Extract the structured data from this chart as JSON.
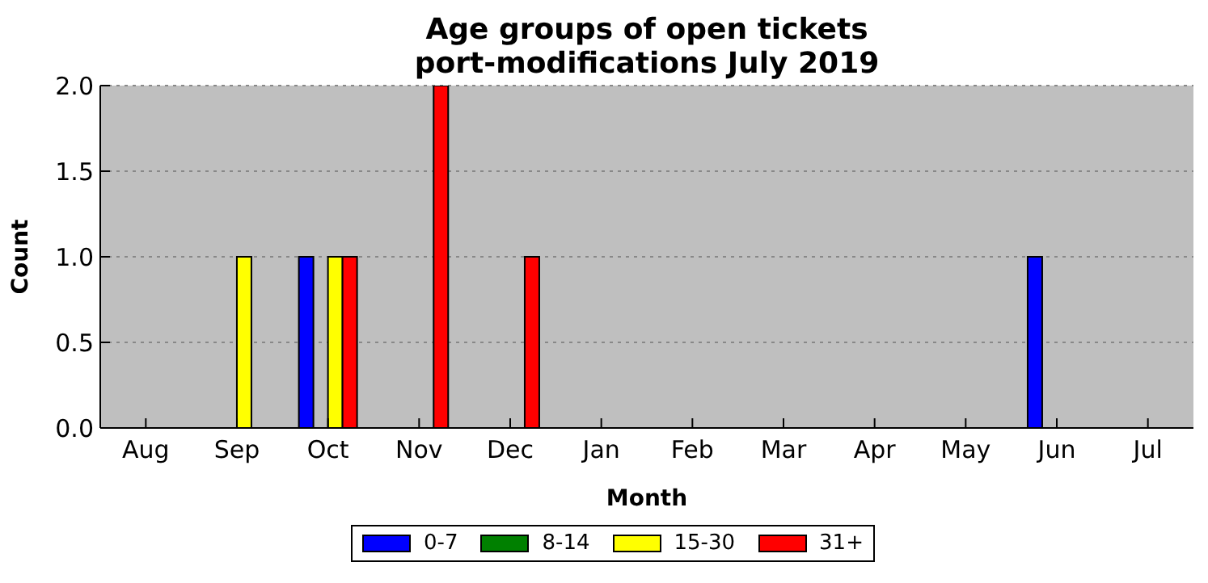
{
  "chart_data": {
    "type": "bar",
    "title": "Age groups of open tickets",
    "subtitle": "port-modifications July 2019",
    "xlabel": "Month",
    "ylabel": "Count",
    "categories": [
      "Aug",
      "Sep",
      "Oct",
      "Nov",
      "Dec",
      "Jan",
      "Feb",
      "Mar",
      "Apr",
      "May",
      "Jun",
      "Jul"
    ],
    "series": [
      {
        "name": "0-7",
        "color": "#0000ff",
        "values": [
          0,
          0,
          1,
          0,
          0,
          0,
          0,
          0,
          0,
          0,
          1,
          0
        ]
      },
      {
        "name": "8-14",
        "color": "#008000",
        "values": [
          0,
          0,
          0,
          0,
          0,
          0,
          0,
          0,
          0,
          0,
          0,
          0
        ]
      },
      {
        "name": "15-30",
        "color": "#ffff00",
        "values": [
          0,
          1,
          1,
          0,
          0,
          0,
          0,
          0,
          0,
          0,
          0,
          0
        ]
      },
      {
        "name": "31+",
        "color": "#ff0000",
        "values": [
          0,
          0,
          1,
          2,
          1,
          0,
          0,
          0,
          0,
          0,
          0,
          0
        ]
      }
    ],
    "ylim": [
      0,
      2
    ],
    "yticks": [
      {
        "value": 0,
        "label": "0.0"
      },
      {
        "value": 0.5,
        "label": "0.5"
      },
      {
        "value": 1,
        "label": "1.0"
      },
      {
        "value": 1.5,
        "label": "1.5"
      },
      {
        "value": 2,
        "label": "2.0"
      }
    ],
    "grid": "y",
    "legend": "bottom"
  }
}
